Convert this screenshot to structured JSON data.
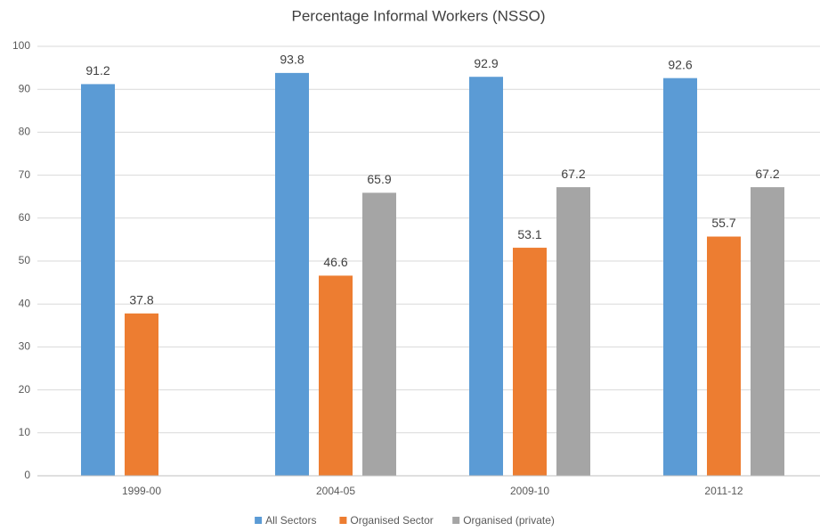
{
  "chart_data": {
    "type": "bar",
    "title": "Percentage Informal Workers (NSSO)",
    "categories": [
      "1999-00",
      "2004-05",
      "2009-10",
      "2011-12"
    ],
    "series": [
      {
        "name": "All Sectors",
        "color": "#5b9bd5",
        "values": [
          91.2,
          93.8,
          92.9,
          92.6
        ]
      },
      {
        "name": "Organised Sector",
        "color": "#ed7d31",
        "values": [
          37.8,
          46.6,
          53.1,
          55.7
        ]
      },
      {
        "name": "Organised (private)",
        "color": "#a5a5a5",
        "values": [
          null,
          65.9,
          67.2,
          67.2
        ]
      }
    ],
    "ylim": [
      0,
      100
    ],
    "yticks": [
      0,
      10,
      20,
      30,
      40,
      50,
      60,
      70,
      80,
      90,
      100
    ],
    "grid": true,
    "legend": "bottom"
  }
}
